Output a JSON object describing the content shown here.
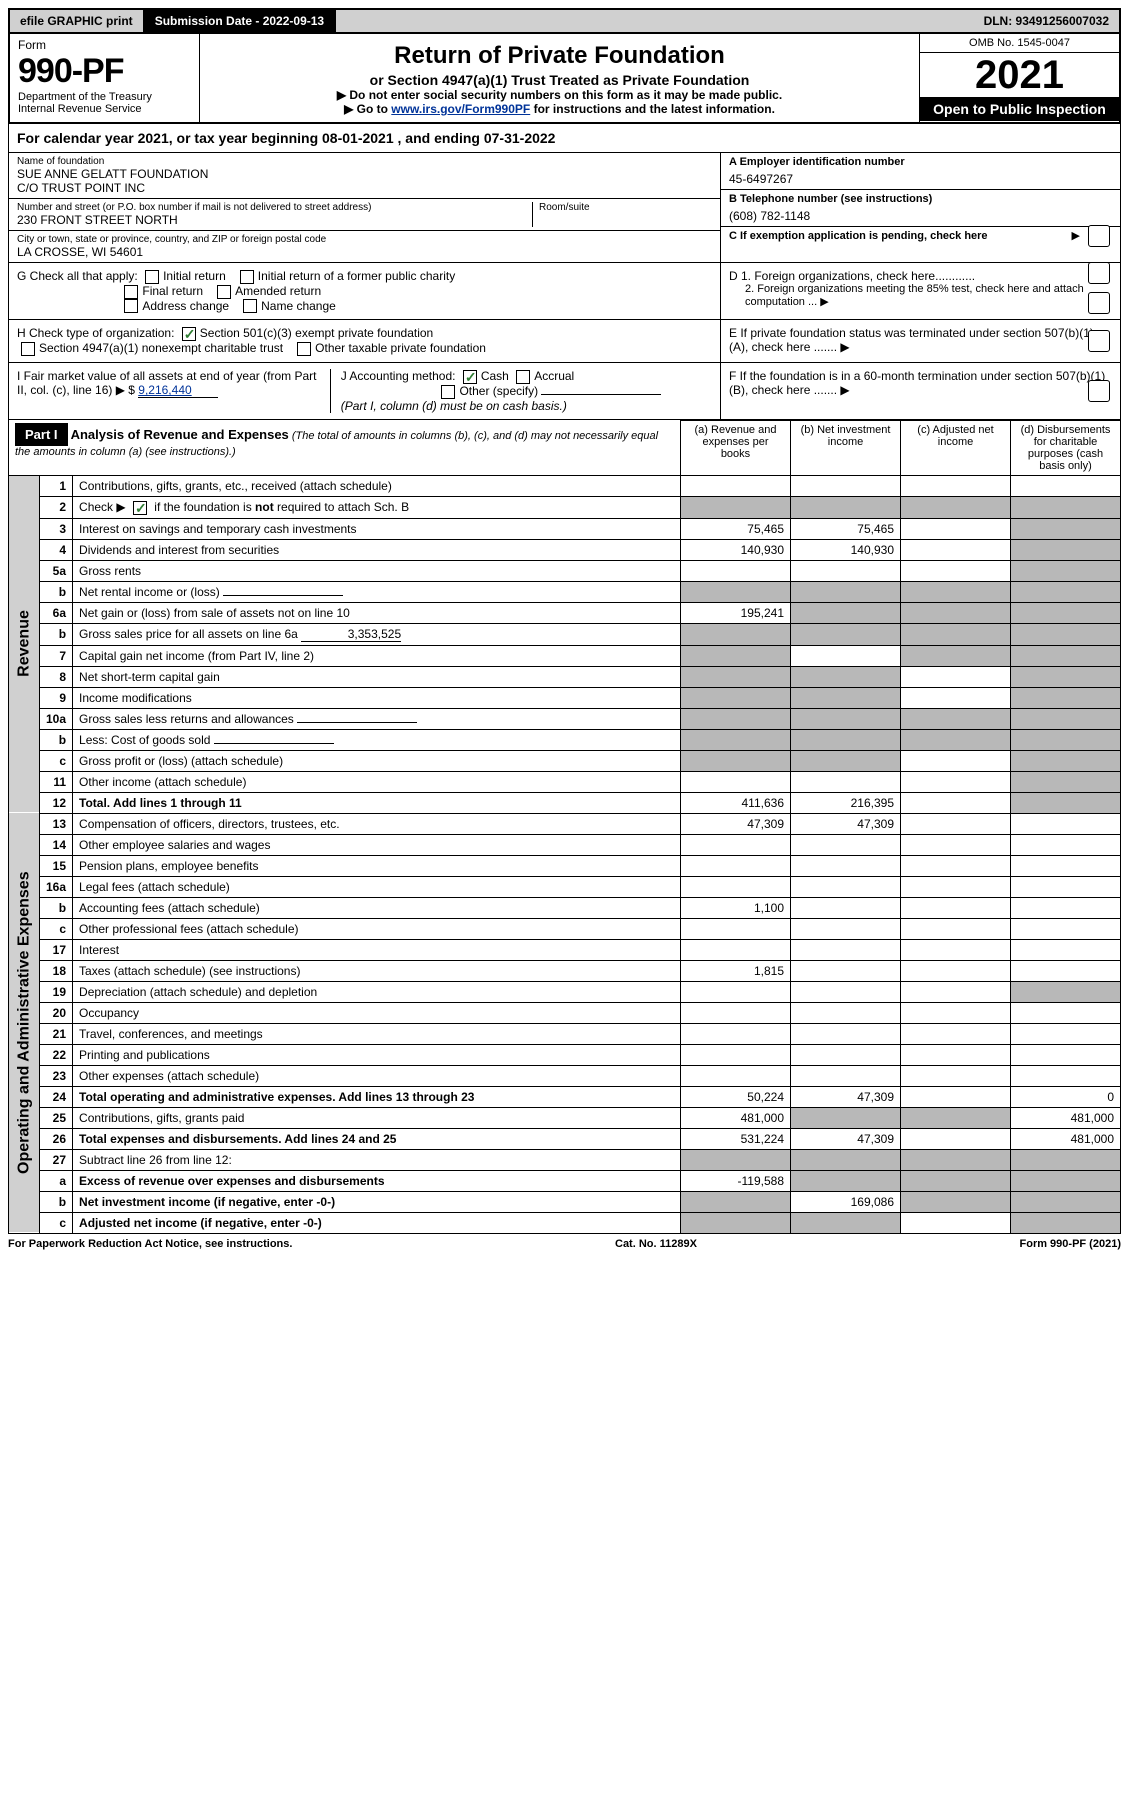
{
  "topbar": {
    "efile": "efile GRAPHIC print",
    "submission_label": "Submission Date - 2022-09-13",
    "dln": "DLN: 93491256007032"
  },
  "header": {
    "form_word": "Form",
    "form_no": "990-PF",
    "dept": "Department of the Treasury",
    "irs": "Internal Revenue Service",
    "title": "Return of Private Foundation",
    "subtitle": "or Section 4947(a)(1) Trust Treated as Private Foundation",
    "warn1": "▶ Do not enter social security numbers on this form as it may be made public.",
    "warn2_pre": "▶ Go to ",
    "warn2_link": "www.irs.gov/Form990PF",
    "warn2_post": " for instructions and the latest information.",
    "omb": "OMB No. 1545-0047",
    "year": "2021",
    "inspection": "Open to Public Inspection"
  },
  "cal_year": "For calendar year 2021, or tax year beginning 08-01-2021          , and ending 07-31-2022",
  "entity": {
    "name_label": "Name of foundation",
    "name1": "SUE ANNE GELATT FOUNDATION",
    "name2": "C/O TRUST POINT INC",
    "addr_label": "Number and street (or P.O. box number if mail is not delivered to street address)",
    "addr": "230 FRONT STREET NORTH",
    "room_label": "Room/suite",
    "city_label": "City or town, state or province, country, and ZIP or foreign postal code",
    "city": "LA CROSSE, WI  54601",
    "ein_label": "A Employer identification number",
    "ein": "45-6497267",
    "phone_label": "B Telephone number (see instructions)",
    "phone": "(608) 782-1148",
    "c_label": "C If exemption application is pending, check here"
  },
  "checks": {
    "g_label": "G Check all that apply:",
    "g_opts": [
      "Initial return",
      "Initial return of a former public charity",
      "Final return",
      "Amended return",
      "Address change",
      "Name change"
    ],
    "h_label": "H Check type of organization:",
    "h1": "Section 501(c)(3) exempt private foundation",
    "h2": "Section 4947(a)(1) nonexempt charitable trust",
    "h3": "Other taxable private foundation",
    "i_label": "I Fair market value of all assets at end of year (from Part II, col. (c), line 16) ▶ $",
    "i_value": "9,216,440",
    "j_label": "J Accounting method:",
    "j_cash": "Cash",
    "j_accrual": "Accrual",
    "j_other": "Other (specify)",
    "j_note": "(Part I, column (d) must be on cash basis.)",
    "d1": "D 1. Foreign organizations, check here............",
    "d2": "2. Foreign organizations meeting the 85% test, check here and attach computation ...",
    "e": "E  If private foundation status was terminated under section 507(b)(1)(A), check here .......",
    "f": "F  If the foundation is in a 60-month termination under section 507(b)(1)(B), check here .......  ▶"
  },
  "part1": {
    "label": "Part I",
    "title": "Analysis of Revenue and Expenses",
    "title_note": "(The total of amounts in columns (b), (c), and (d) may not necessarily equal the amounts in column (a) (see instructions).)",
    "col_a": "(a)   Revenue and expenses per books",
    "col_b": "(b)   Net investment income",
    "col_c": "(c)   Adjusted net income",
    "col_d": "(d)   Disbursements for charitable purposes (cash basis only)"
  },
  "sides": {
    "revenue": "Revenue",
    "expenses": "Operating and Administrative Expenses"
  },
  "rows": [
    {
      "n": "1",
      "label": "Contributions, gifts, grants, etc., received (attach schedule)",
      "a": "",
      "b": "",
      "c": "",
      "d": ""
    },
    {
      "n": "2",
      "label": "Check ▶ ☑ if the foundation is not required to attach Sch. B",
      "a": "shade",
      "b": "shade",
      "c": "shade",
      "d": "shade",
      "checked": true
    },
    {
      "n": "3",
      "label": "Interest on savings and temporary cash investments",
      "a": "75,465",
      "b": "75,465",
      "c": "",
      "d": "shade"
    },
    {
      "n": "4",
      "label": "Dividends and interest from securities",
      "a": "140,930",
      "b": "140,930",
      "c": "",
      "d": "shade"
    },
    {
      "n": "5a",
      "label": "Gross rents",
      "a": "",
      "b": "",
      "c": "",
      "d": "shade"
    },
    {
      "n": "b",
      "label": "Net rental income or (loss)",
      "a": "shade",
      "b": "shade",
      "c": "shade",
      "d": "shade",
      "inline": true
    },
    {
      "n": "6a",
      "label": "Net gain or (loss) from sale of assets not on line 10",
      "a": "195,241",
      "b": "shade",
      "c": "shade",
      "d": "shade"
    },
    {
      "n": "b",
      "label": "Gross sales price for all assets on line 6a",
      "a": "shade",
      "b": "shade",
      "c": "shade",
      "d": "shade",
      "inline_val": "3,353,525"
    },
    {
      "n": "7",
      "label": "Capital gain net income (from Part IV, line 2)",
      "a": "shade",
      "b": "",
      "c": "shade",
      "d": "shade"
    },
    {
      "n": "8",
      "label": "Net short-term capital gain",
      "a": "shade",
      "b": "shade",
      "c": "",
      "d": "shade"
    },
    {
      "n": "9",
      "label": "Income modifications",
      "a": "shade",
      "b": "shade",
      "c": "",
      "d": "shade"
    },
    {
      "n": "10a",
      "label": "Gross sales less returns and allowances",
      "a": "shade",
      "b": "shade",
      "c": "shade",
      "d": "shade",
      "inline": true
    },
    {
      "n": "b",
      "label": "Less: Cost of goods sold",
      "a": "shade",
      "b": "shade",
      "c": "shade",
      "d": "shade",
      "inline": true
    },
    {
      "n": "c",
      "label": "Gross profit or (loss) (attach schedule)",
      "a": "shade",
      "b": "shade",
      "c": "",
      "d": "shade"
    },
    {
      "n": "11",
      "label": "Other income (attach schedule)",
      "a": "",
      "b": "",
      "c": "",
      "d": "shade"
    },
    {
      "n": "12",
      "label": "Total. Add lines 1 through 11",
      "a": "411,636",
      "b": "216,395",
      "c": "",
      "d": "shade",
      "bold": true
    },
    {
      "n": "13",
      "label": "Compensation of officers, directors, trustees, etc.",
      "a": "47,309",
      "b": "47,309",
      "c": "",
      "d": ""
    },
    {
      "n": "14",
      "label": "Other employee salaries and wages",
      "a": "",
      "b": "",
      "c": "",
      "d": ""
    },
    {
      "n": "15",
      "label": "Pension plans, employee benefits",
      "a": "",
      "b": "",
      "c": "",
      "d": ""
    },
    {
      "n": "16a",
      "label": "Legal fees (attach schedule)",
      "a": "",
      "b": "",
      "c": "",
      "d": ""
    },
    {
      "n": "b",
      "label": "Accounting fees (attach schedule)",
      "a": "1,100",
      "b": "",
      "c": "",
      "d": ""
    },
    {
      "n": "c",
      "label": "Other professional fees (attach schedule)",
      "a": "",
      "b": "",
      "c": "",
      "d": ""
    },
    {
      "n": "17",
      "label": "Interest",
      "a": "",
      "b": "",
      "c": "",
      "d": ""
    },
    {
      "n": "18",
      "label": "Taxes (attach schedule) (see instructions)",
      "a": "1,815",
      "b": "",
      "c": "",
      "d": ""
    },
    {
      "n": "19",
      "label": "Depreciation (attach schedule) and depletion",
      "a": "",
      "b": "",
      "c": "",
      "d": "shade"
    },
    {
      "n": "20",
      "label": "Occupancy",
      "a": "",
      "b": "",
      "c": "",
      "d": ""
    },
    {
      "n": "21",
      "label": "Travel, conferences, and meetings",
      "a": "",
      "b": "",
      "c": "",
      "d": ""
    },
    {
      "n": "22",
      "label": "Printing and publications",
      "a": "",
      "b": "",
      "c": "",
      "d": ""
    },
    {
      "n": "23",
      "label": "Other expenses (attach schedule)",
      "a": "",
      "b": "",
      "c": "",
      "d": ""
    },
    {
      "n": "24",
      "label": "Total operating and administrative expenses. Add lines 13 through 23",
      "a": "50,224",
      "b": "47,309",
      "c": "",
      "d": "0",
      "bold": true
    },
    {
      "n": "25",
      "label": "Contributions, gifts, grants paid",
      "a": "481,000",
      "b": "shade",
      "c": "shade",
      "d": "481,000"
    },
    {
      "n": "26",
      "label": "Total expenses and disbursements. Add lines 24 and 25",
      "a": "531,224",
      "b": "47,309",
      "c": "",
      "d": "481,000",
      "bold": true
    },
    {
      "n": "27",
      "label": "Subtract line 26 from line 12:",
      "a": "shade",
      "b": "shade",
      "c": "shade",
      "d": "shade"
    },
    {
      "n": "a",
      "label": "Excess of revenue over expenses and disbursements",
      "a": "-119,588",
      "b": "shade",
      "c": "shade",
      "d": "shade",
      "bold": true
    },
    {
      "n": "b",
      "label": "Net investment income (if negative, enter -0-)",
      "a": "shade",
      "b": "169,086",
      "c": "shade",
      "d": "shade",
      "bold": true
    },
    {
      "n": "c",
      "label": "Adjusted net income (if negative, enter -0-)",
      "a": "shade",
      "b": "shade",
      "c": "",
      "d": "shade",
      "bold": true
    }
  ],
  "footer": {
    "left": "For Paperwork Reduction Act Notice, see instructions.",
    "mid": "Cat. No. 11289X",
    "right": "Form 990-PF (2021)"
  }
}
